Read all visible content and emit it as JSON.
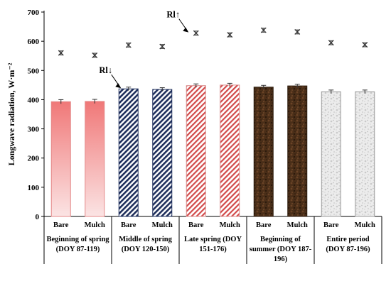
{
  "chart_data": {
    "type": "bar",
    "ylabel": "Longwave radiation, W·m⁻²",
    "ylim": [
      0,
      700
    ],
    "yticks": [
      0,
      100,
      200,
      300,
      400,
      500,
      600,
      700
    ],
    "grid": false,
    "legend": "none",
    "groups": [
      {
        "label": "Beginning of spring (DOY 87-119)",
        "label_lines": [
          "Beginning of spring",
          "(DOY 87-119)"
        ],
        "pattern": "pink-gradient",
        "bars": [
          {
            "category": "Bare",
            "rl_down": 393,
            "rl_down_err": 7,
            "rl_up": 560,
            "rl_up_err": 7
          },
          {
            "category": "Mulch",
            "rl_down": 394,
            "rl_down_err": 7,
            "rl_up": 552,
            "rl_up_err": 7
          }
        ]
      },
      {
        "label": "Middle of spring (DOY 120-150)",
        "label_lines": [
          "Middle of spring",
          "(DOY 120-150)"
        ],
        "pattern": "navy-diagonal-stripes",
        "bars": [
          {
            "category": "Bare",
            "rl_down": 437,
            "rl_down_err": 6,
            "rl_up": 587,
            "rl_up_err": 7
          },
          {
            "category": "Mulch",
            "rl_down": 435,
            "rl_down_err": 6,
            "rl_up": 582,
            "rl_up_err": 7
          }
        ]
      },
      {
        "label": "Late spring (DOY 151-176)",
        "label_lines": [
          "Late spring (DOY",
          "151-176)"
        ],
        "pattern": "red-diagonal-stripes",
        "bars": [
          {
            "category": "Bare",
            "rl_down": 448,
            "rl_down_err": 6,
            "rl_up": 628,
            "rl_up_err": 7
          },
          {
            "category": "Mulch",
            "rl_down": 450,
            "rl_down_err": 6,
            "rl_up": 622,
            "rl_up_err": 7
          }
        ]
      },
      {
        "label": "Beginning of summer (DOY 187-196)",
        "label_lines": [
          "Beginning of",
          "summer (DOY 187-",
          "196)"
        ],
        "pattern": "dark-brown-texture",
        "bars": [
          {
            "category": "Bare",
            "rl_down": 443,
            "rl_down_err": 6,
            "rl_up": 638,
            "rl_up_err": 7
          },
          {
            "category": "Mulch",
            "rl_down": 447,
            "rl_down_err": 6,
            "rl_up": 632,
            "rl_up_err": 7
          }
        ]
      },
      {
        "label": "Entire period (DOY 87-196)",
        "label_lines": [
          "Entire period",
          "(DOY 87-196)"
        ],
        "pattern": "light-grey-texture",
        "bars": [
          {
            "category": "Bare",
            "rl_down": 427,
            "rl_down_err": 6,
            "rl_up": 595,
            "rl_up_err": 7
          },
          {
            "category": "Mulch",
            "rl_down": 427,
            "rl_down_err": 6,
            "rl_up": 588,
            "rl_up_err": 7
          }
        ]
      }
    ],
    "annotations": [
      {
        "text": "Rl↓",
        "target_group": 1,
        "target_bar": 0,
        "series": "rl_down"
      },
      {
        "text": "Rl↑",
        "target_group": 2,
        "target_bar": 0,
        "series": "rl_up"
      }
    ],
    "colors": {
      "pink_top": "#f07878",
      "pink_bottom": "#fbe4e4",
      "navy_stripe": "#1f2f5c",
      "red_stripe": "#d24a4a",
      "brown_dark": "#3a2412",
      "brown_mid": "#6b4326",
      "grey_light": "#e6e6e6",
      "grey_mid": "#bdbdbd"
    }
  }
}
